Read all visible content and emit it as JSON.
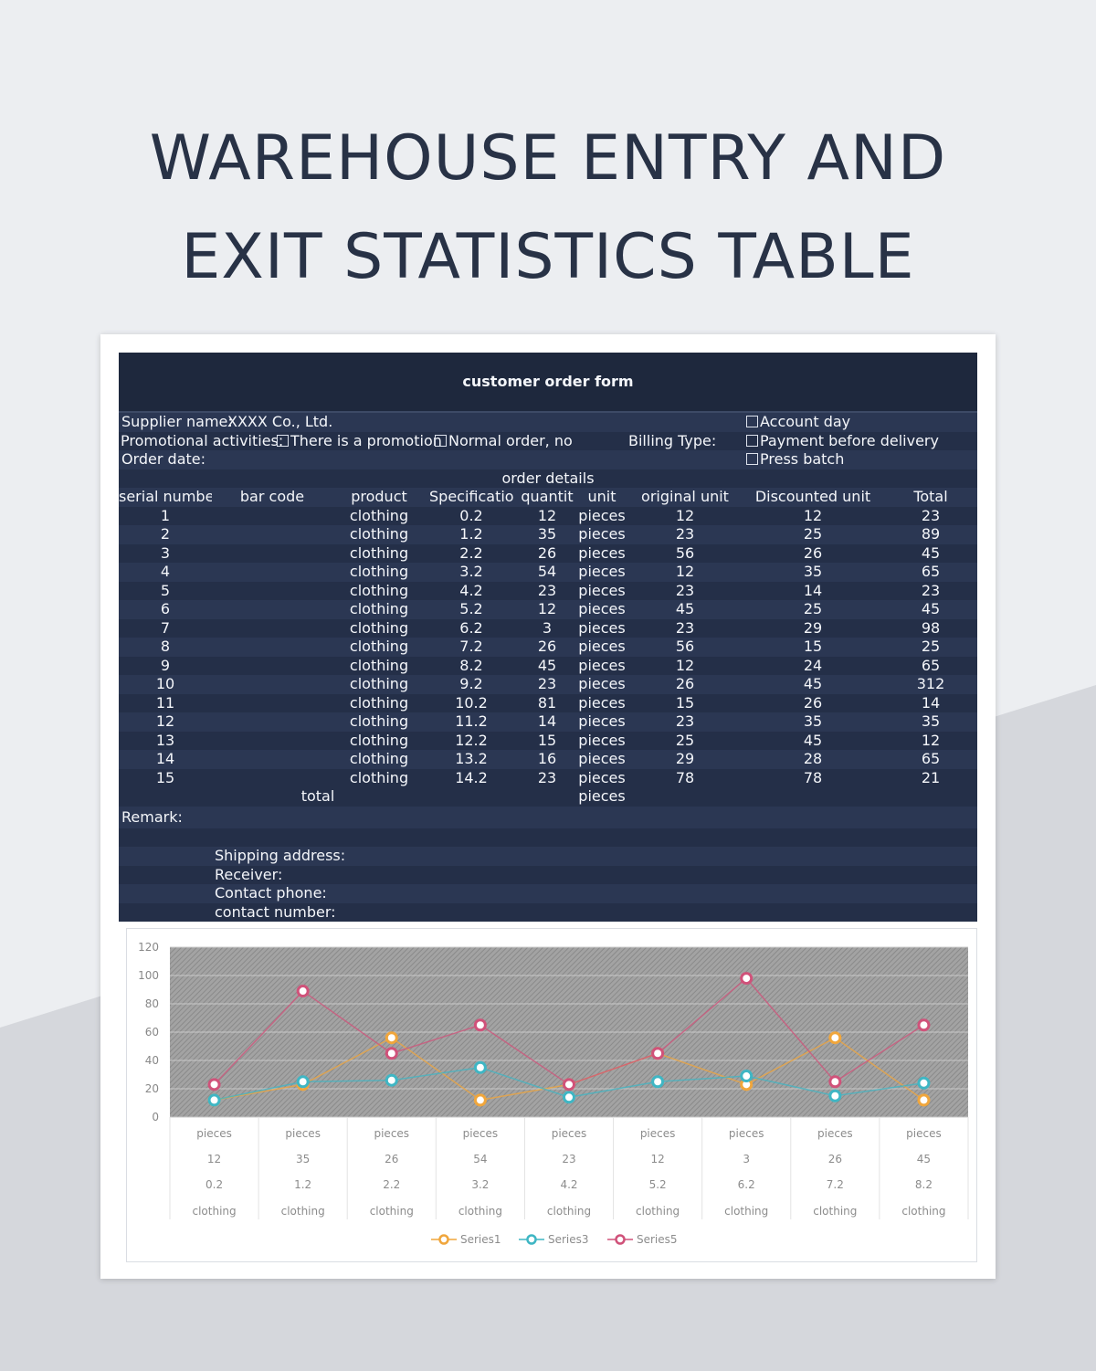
{
  "page_title_lines": [
    "WAREHOUSE ENTRY AND",
    "EXIT STATISTICS TABLE"
  ],
  "form": {
    "title": "customer order form",
    "supplier_label": "Supplier name:",
    "supplier_value": "XXXX Co., Ltd.",
    "promo_label": "Promotional activities:",
    "promo_option_1": "There is a promotion",
    "promo_option_2": "Normal order, no pr",
    "billing_label": "Billing Type:",
    "billing_option_1": "Account day",
    "billing_option_2": "Payment before delivery",
    "billing_option_3": "Press batch",
    "order_date_label": "Order date:",
    "section_title": "order details",
    "columns": [
      "serial number",
      "bar code",
      "product",
      "Specificatio",
      "quantit",
      "unit",
      "original unit",
      "Discounted unit",
      "Total"
    ],
    "rows": [
      {
        "serial": "1",
        "product": "clothing",
        "spec": "0.2",
        "qty": "12",
        "unit": "pieces",
        "orig": "12",
        "disc": "12",
        "total": "23"
      },
      {
        "serial": "2",
        "product": "clothing",
        "spec": "1.2",
        "qty": "35",
        "unit": "pieces",
        "orig": "23",
        "disc": "25",
        "total": "89"
      },
      {
        "serial": "3",
        "product": "clothing",
        "spec": "2.2",
        "qty": "26",
        "unit": "pieces",
        "orig": "56",
        "disc": "26",
        "total": "45"
      },
      {
        "serial": "4",
        "product": "clothing",
        "spec": "3.2",
        "qty": "54",
        "unit": "pieces",
        "orig": "12",
        "disc": "35",
        "total": "65"
      },
      {
        "serial": "5",
        "product": "clothing",
        "spec": "4.2",
        "qty": "23",
        "unit": "pieces",
        "orig": "23",
        "disc": "14",
        "total": "23"
      },
      {
        "serial": "6",
        "product": "clothing",
        "spec": "5.2",
        "qty": "12",
        "unit": "pieces",
        "orig": "45",
        "disc": "25",
        "total": "45"
      },
      {
        "serial": "7",
        "product": "clothing",
        "spec": "6.2",
        "qty": "3",
        "unit": "pieces",
        "orig": "23",
        "disc": "29",
        "total": "98"
      },
      {
        "serial": "8",
        "product": "clothing",
        "spec": "7.2",
        "qty": "26",
        "unit": "pieces",
        "orig": "56",
        "disc": "15",
        "total": "25"
      },
      {
        "serial": "9",
        "product": "clothing",
        "spec": "8.2",
        "qty": "45",
        "unit": "pieces",
        "orig": "12",
        "disc": "24",
        "total": "65"
      },
      {
        "serial": "10",
        "product": "clothing",
        "spec": "9.2",
        "qty": "23",
        "unit": "pieces",
        "orig": "26",
        "disc": "45",
        "total": "312"
      },
      {
        "serial": "11",
        "product": "clothing",
        "spec": "10.2",
        "qty": "81",
        "unit": "pieces",
        "orig": "15",
        "disc": "26",
        "total": "14"
      },
      {
        "serial": "12",
        "product": "clothing",
        "spec": "11.2",
        "qty": "14",
        "unit": "pieces",
        "orig": "23",
        "disc": "35",
        "total": "35"
      },
      {
        "serial": "13",
        "product": "clothing",
        "spec": "12.2",
        "qty": "15",
        "unit": "pieces",
        "orig": "25",
        "disc": "45",
        "total": "12"
      },
      {
        "serial": "14",
        "product": "clothing",
        "spec": "13.2",
        "qty": "16",
        "unit": "pieces",
        "orig": "29",
        "disc": "28",
        "total": "65"
      },
      {
        "serial": "15",
        "product": "clothing",
        "spec": "14.2",
        "qty": "23",
        "unit": "pieces",
        "orig": "78",
        "disc": "78",
        "total": "21"
      }
    ],
    "total_label": "total",
    "total_unit": "pieces",
    "remark_label": "Remark:",
    "shipping_label": "Shipping address:",
    "receiver_label": "Receiver:",
    "contact_phone_label": "Contact phone:",
    "contact_number_label": "contact number:"
  },
  "chart_data": {
    "type": "line",
    "ylim": [
      0,
      120
    ],
    "yticks": [
      0,
      20,
      40,
      60,
      80,
      100,
      120
    ],
    "category_levels": [
      [
        "pieces",
        "pieces",
        "pieces",
        "pieces",
        "pieces",
        "pieces",
        "pieces",
        "pieces",
        "pieces"
      ],
      [
        "12",
        "35",
        "26",
        "54",
        "23",
        "12",
        "3",
        "26",
        "45"
      ],
      [
        "0.2",
        "1.2",
        "2.2",
        "3.2",
        "4.2",
        "5.2",
        "6.2",
        "7.2",
        "8.2"
      ],
      [
        "clothing",
        "clothing",
        "clothing",
        "clothing",
        "clothing",
        "clothing",
        "clothing",
        "clothing",
        "clothing"
      ]
    ],
    "series": [
      {
        "name": "Series1",
        "color": "#f0a63c",
        "values": [
          12,
          23,
          56,
          12,
          23,
          45,
          23,
          56,
          12
        ]
      },
      {
        "name": "Series3",
        "color": "#3fb6c4",
        "values": [
          12,
          25,
          26,
          35,
          14,
          25,
          29,
          15,
          24
        ]
      },
      {
        "name": "Series5",
        "color": "#d0527a",
        "values": [
          23,
          89,
          45,
          65,
          23,
          45,
          98,
          25,
          65
        ]
      }
    ],
    "legend_position": "bottom",
    "plot_background": "#9a9a9a",
    "grid": true
  }
}
